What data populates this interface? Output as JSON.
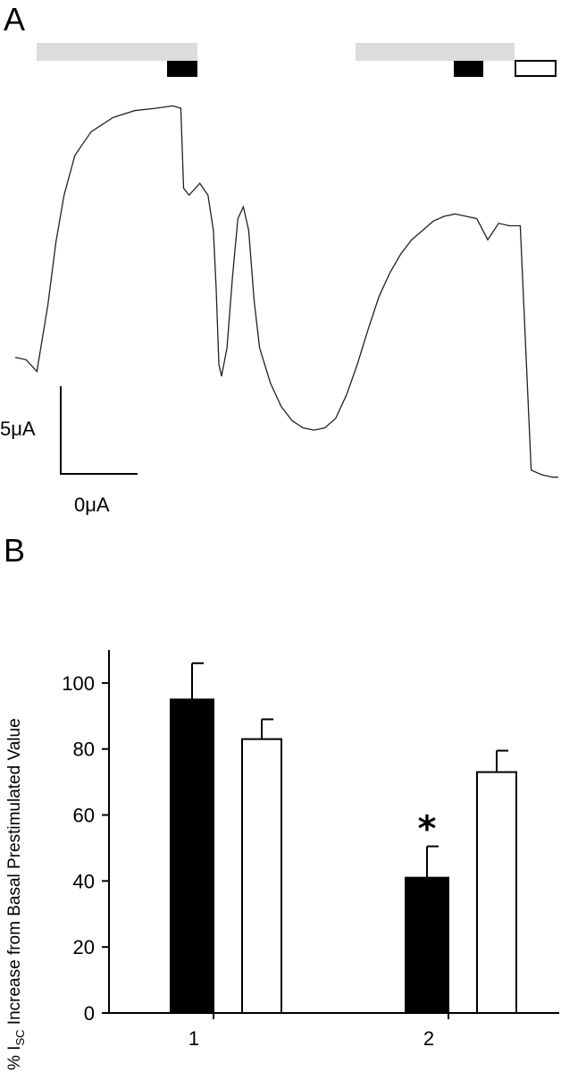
{
  "panels": {
    "a_label": "A",
    "b_label": "B"
  },
  "scale_bar": {
    "vertical_label": "5μA",
    "horizontal_label": "0μA"
  },
  "colors": {
    "stim_bar": "#dcdcdc",
    "filled_bar": "#000000",
    "open_bar": "#ffffff",
    "trace": "#222222"
  },
  "chart_data": [
    {
      "type": "line",
      "panel": "A",
      "description_of_axes": "",
      "x": [
        0,
        2,
        4,
        6,
        7.5,
        9,
        11,
        14,
        18,
        22,
        26,
        29,
        30.5,
        31,
        32,
        34,
        35.5,
        36.5,
        37,
        37.5,
        38,
        39,
        40,
        41,
        42,
        43,
        44,
        45,
        47,
        49,
        51,
        53,
        55,
        57,
        59,
        61,
        63,
        65,
        67,
        69,
        71,
        73,
        75,
        77,
        79,
        81,
        83,
        85,
        87,
        89,
        91,
        93,
        95,
        97,
        99,
        100
      ],
      "y": [
        0.6,
        0.5,
        0.0,
        2.8,
        5.5,
        7.5,
        9.2,
        10.2,
        10.8,
        11.1,
        11.2,
        11.3,
        11.2,
        7.8,
        7.5,
        8.0,
        7.5,
        6.0,
        3.5,
        0.3,
        -0.2,
        1.0,
        4.0,
        6.5,
        7.0,
        6.0,
        3.0,
        1.0,
        -0.5,
        -1.5,
        -2.1,
        -2.4,
        -2.5,
        -2.4,
        -2.0,
        -1.0,
        0.3,
        1.8,
        3.2,
        4.2,
        5.0,
        5.6,
        6.0,
        6.4,
        6.6,
        6.7,
        6.6,
        6.5,
        5.6,
        6.3,
        6.2,
        6.2,
        -4.2,
        -4.4,
        -4.5,
        -4.5
      ],
      "xlim": [
        0,
        100
      ],
      "ylim": [
        -5.5,
        12
      ]
    },
    {
      "type": "bar",
      "panel": "B",
      "categories": [
        "1",
        "2"
      ],
      "series": [
        {
          "values": [
            95,
            41
          ],
          "errors": [
            11,
            9.5
          ],
          "color": "#000000"
        },
        {
          "values": [
            83,
            73
          ],
          "errors": [
            6,
            6.5
          ],
          "color": "#ffffff"
        }
      ],
      "ylabel_parts": [
        "% I",
        "SC",
        " Increase from Basal Prestimulated Value"
      ],
      "ylim": [
        0,
        110
      ],
      "yticks": [
        "0",
        "20",
        "40",
        "60",
        "80",
        "100"
      ],
      "ytick_values": [
        0,
        20,
        40,
        60,
        80,
        100
      ],
      "annotation": "*",
      "annotation_on": "2"
    }
  ]
}
